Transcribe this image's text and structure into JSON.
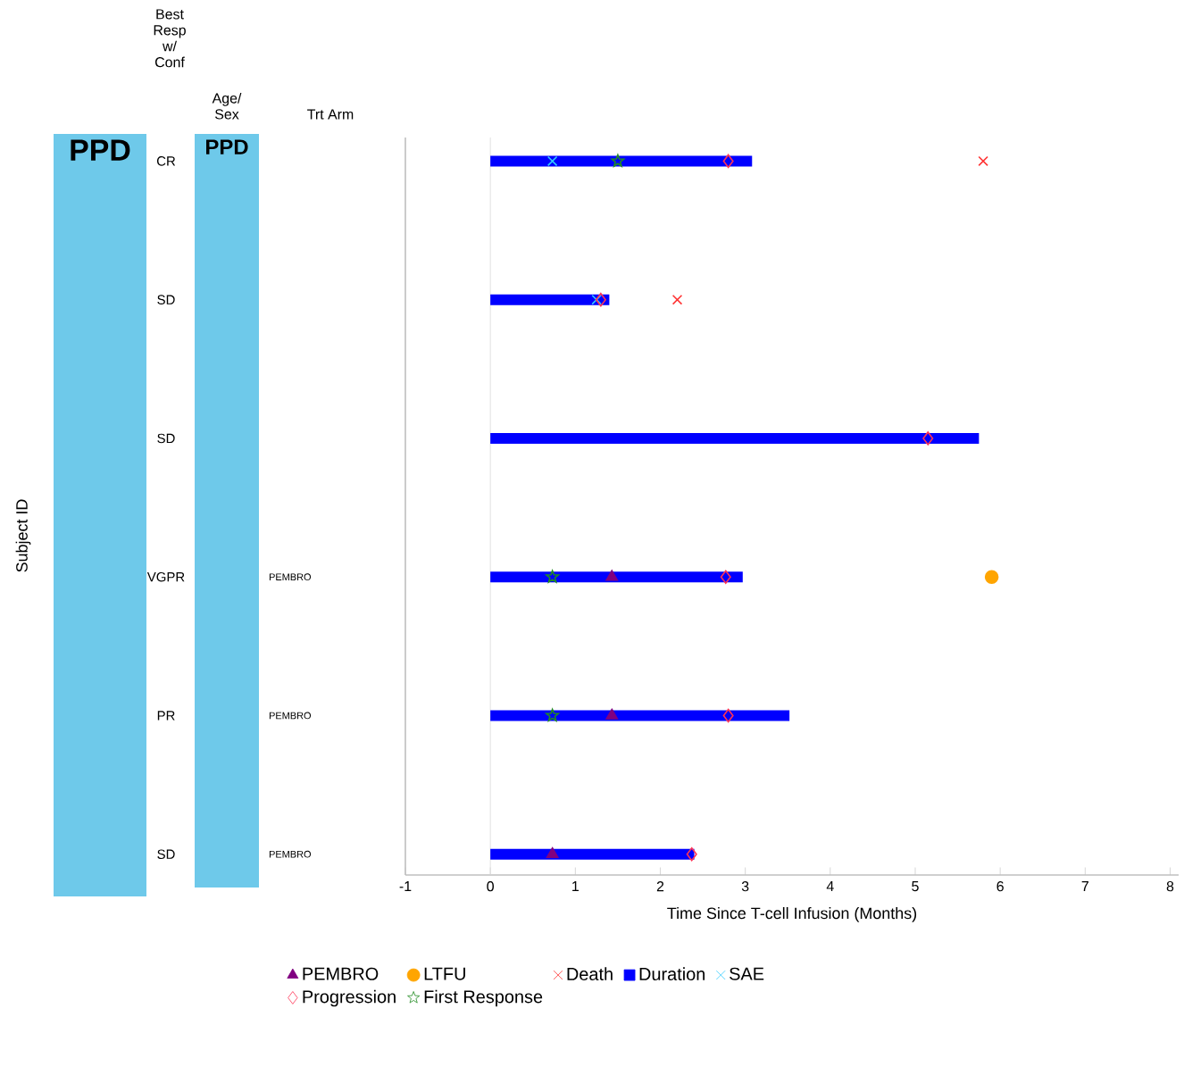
{
  "chart_data": {
    "type": "bar",
    "orientation": "horizontal",
    "xlabel": "Time Since T-cell Infusion (Months)",
    "categories": [
      null,
      null,
      null,
      null,
      null,
      null
    ],
    "series": [
      {
        "name": "PEMBRO",
        "type": "scatter",
        "marker": "triangle",
        "color": "#800080",
        "values": [
          null,
          null,
          null,
          1.43,
          1.43,
          0.73
        ]
      },
      {
        "name": "LTFU",
        "type": "scatter",
        "marker": "circle",
        "color": "#ffa500",
        "values": [
          null,
          null,
          null,
          5.9,
          null,
          null
        ]
      },
      {
        "name": "Death",
        "type": "scatter",
        "marker": "cross",
        "color": "#ff3333",
        "values": [
          5.8,
          2.2,
          null,
          null,
          null,
          null
        ]
      },
      {
        "name": "Duration",
        "color": "#0000ff",
        "values": [
          3.08,
          1.4,
          5.75,
          2.97,
          3.52,
          2.4
        ]
      },
      {
        "name": "SAE",
        "type": "scatter",
        "marker": "cross",
        "color": "#33ccff",
        "values": [
          0.73,
          1.25,
          null,
          null,
          null,
          null
        ]
      },
      {
        "name": "Progression",
        "type": "scatter",
        "marker": "diamond",
        "color": "#ff3355",
        "values": [
          2.8,
          1.3,
          5.15,
          2.77,
          2.8,
          2.37
        ]
      },
      {
        "name": "First Response",
        "type": "scatter",
        "marker": "star",
        "color": "#228b22",
        "values": [
          1.5,
          null,
          null,
          0.73,
          0.73,
          null
        ]
      }
    ],
    "xlim": [
      -1,
      8.1
    ],
    "xticks": [
      -1,
      0,
      1,
      2,
      3,
      4,
      5,
      6,
      7,
      8
    ],
    "ref_lines": [
      {
        "axis": "x",
        "value": 0,
        "color": "#d9d9d9"
      }
    ],
    "grid": false,
    "legend": "bottom",
    "annotations": [
      "Subject ID",
      "Best Resp w/ Conf",
      "Age/ Sex",
      "Trt Arm",
      "PPD",
      "PPD",
      "CR",
      "SD",
      "SD",
      "VGPR",
      "PR",
      "SD",
      "PEMBRO",
      "PEMBRO",
      "PEMBRO"
    ]
  }
}
